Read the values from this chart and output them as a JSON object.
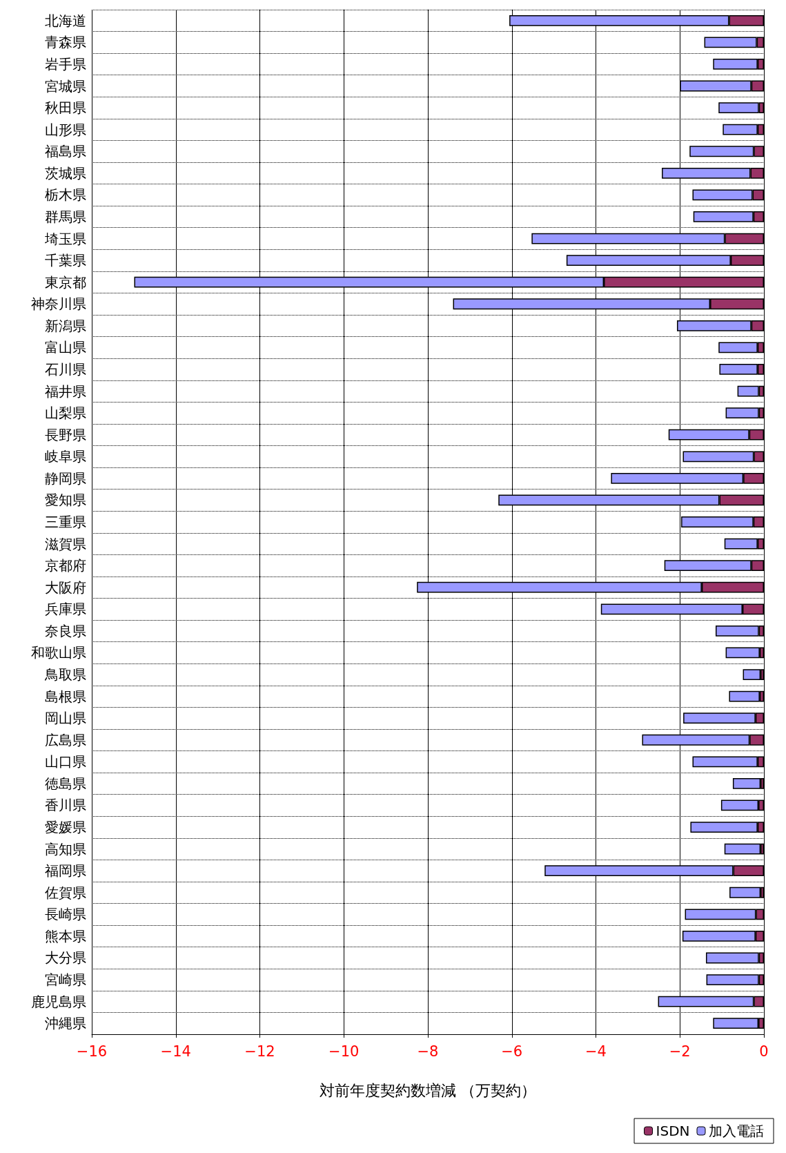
{
  "chart_data": {
    "type": "bar",
    "orientation": "horizontal",
    "stacked": true,
    "xlabel": "対前年度契約数増減 （万契約）",
    "categories": [
      "北海道",
      "青森県",
      "岩手県",
      "宮城県",
      "秋田県",
      "山形県",
      "福島県",
      "茨城県",
      "栃木県",
      "群馬県",
      "埼玉県",
      "千葉県",
      "東京都",
      "神奈川県",
      "新潟県",
      "富山県",
      "石川県",
      "福井県",
      "山梨県",
      "長野県",
      "岐阜県",
      "静岡県",
      "愛知県",
      "三重県",
      "滋賀県",
      "京都府",
      "大阪府",
      "兵庫県",
      "奈良県",
      "和歌山県",
      "鳥取県",
      "島根県",
      "岡山県",
      "広島県",
      "山口県",
      "徳島県",
      "香川県",
      "愛媛県",
      "高知県",
      "福岡県",
      "佐賀県",
      "長崎県",
      "熊本県",
      "大分県",
      "宮崎県",
      "鹿児島県",
      "沖縄県"
    ],
    "series": [
      {
        "name": "ISDN",
        "color": "#993366",
        "values": [
          -0.83,
          -0.17,
          -0.15,
          -0.3,
          -0.12,
          -0.15,
          -0.24,
          -0.32,
          -0.27,
          -0.25,
          -0.93,
          -0.79,
          -3.81,
          -1.28,
          -0.3,
          -0.15,
          -0.15,
          -0.12,
          -0.12,
          -0.35,
          -0.24,
          -0.49,
          -1.06,
          -0.25,
          -0.15,
          -0.3,
          -1.48,
          -0.51,
          -0.12,
          -0.1,
          -0.08,
          -0.1,
          -0.2,
          -0.34,
          -0.15,
          -0.08,
          -0.13,
          -0.15,
          -0.08,
          -0.73,
          -0.08,
          -0.19,
          -0.2,
          -0.12,
          -0.12,
          -0.24,
          -0.13
        ]
      },
      {
        "name": "加入電話",
        "color": "#9999ff",
        "values": [
          -5.23,
          -1.25,
          -1.06,
          -1.7,
          -0.96,
          -0.83,
          -1.53,
          -2.11,
          -1.43,
          -1.43,
          -4.6,
          -3.91,
          -11.18,
          -6.12,
          -1.77,
          -0.93,
          -0.91,
          -0.51,
          -0.79,
          -1.92,
          -1.69,
          -3.15,
          -5.26,
          -1.72,
          -0.79,
          -2.07,
          -6.78,
          -3.37,
          -1.03,
          -0.81,
          -0.42,
          -0.73,
          -1.72,
          -2.56,
          -1.55,
          -0.66,
          -0.89,
          -1.6,
          -0.86,
          -4.49,
          -0.74,
          -1.69,
          -1.74,
          -1.26,
          -1.25,
          -2.28,
          -1.08
        ]
      }
    ],
    "xlim": [
      -16,
      0
    ],
    "xticks": [
      -16,
      -14,
      -12,
      -10,
      -8,
      -6,
      -4,
      -2,
      0
    ],
    "grid": true,
    "legend": "bottom right"
  }
}
